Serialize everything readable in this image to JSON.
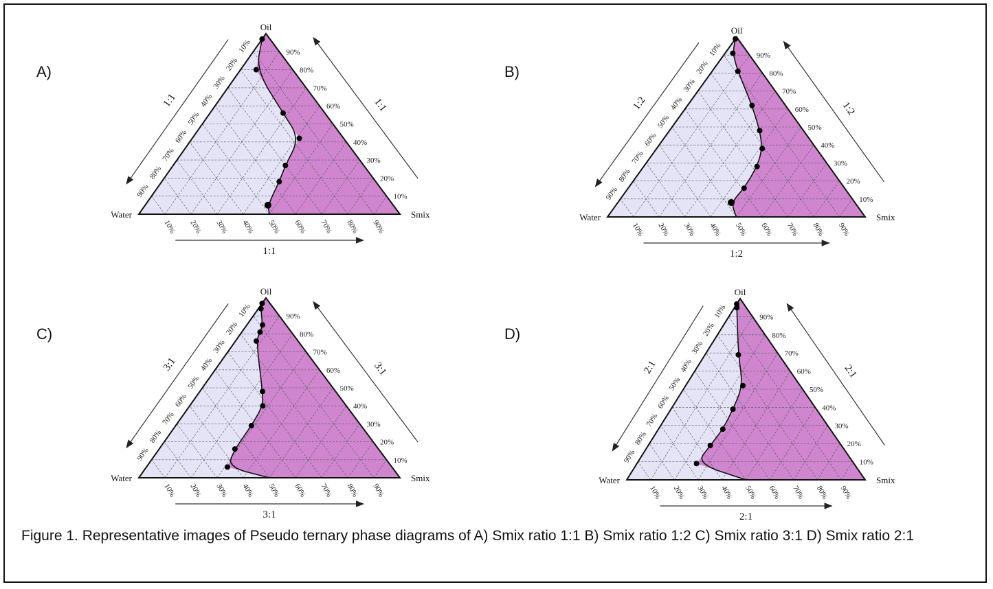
{
  "caption": "Figure 1. Representative images of Pseudo ternary phase diagrams of A) Smix ratio 1:1 B) Smix ratio 1:2 C) Smix ratio 3:1 D) Smix ratio 2:1",
  "vertices": {
    "top": "Oil",
    "left": "Water",
    "right": "Smix"
  },
  "ticks": [
    "10%",
    "20%",
    "30%",
    "40%",
    "50%",
    "60%",
    "70%",
    "80%",
    "90%"
  ],
  "colors": {
    "region": "#cf86cf",
    "light": "#e4e4f6",
    "frame": "#111111",
    "grid": "#555555"
  },
  "panels": [
    {
      "letter": "A)",
      "ratio": "1:1",
      "boundary": [
        [
          0.97,
          0.0
        ],
        [
          0.8,
          0.06
        ],
        [
          0.56,
          0.28
        ],
        [
          0.42,
          0.41
        ],
        [
          0.27,
          0.43
        ],
        [
          0.18,
          0.45
        ],
        [
          0.05,
          0.47
        ],
        [
          0.0,
          0.5
        ]
      ],
      "points": [
        [
          0.97,
          0.0
        ],
        [
          0.8,
          0.06
        ],
        [
          0.56,
          0.28
        ],
        [
          0.42,
          0.41
        ],
        [
          0.27,
          0.43
        ],
        [
          0.18,
          0.45
        ],
        [
          0.05,
          0.47
        ]
      ]
    },
    {
      "letter": "B)",
      "ratio": "1:2",
      "boundary": [
        [
          0.99,
          0.0
        ],
        [
          0.91,
          0.03
        ],
        [
          0.81,
          0.1
        ],
        [
          0.62,
          0.25
        ],
        [
          0.48,
          0.35
        ],
        [
          0.38,
          0.41
        ],
        [
          0.28,
          0.44
        ],
        [
          0.16,
          0.45
        ],
        [
          0.08,
          0.44
        ],
        [
          0.0,
          0.5
        ]
      ],
      "points": [
        [
          0.99,
          0.0
        ],
        [
          0.91,
          0.03
        ],
        [
          0.81,
          0.1
        ],
        [
          0.62,
          0.25
        ],
        [
          0.48,
          0.35
        ],
        [
          0.38,
          0.41
        ],
        [
          0.28,
          0.44
        ],
        [
          0.16,
          0.45
        ],
        [
          0.08,
          0.44
        ]
      ]
    },
    {
      "letter": "C)",
      "ratio": "3:1",
      "boundary": [
        [
          0.97,
          0.0
        ],
        [
          0.94,
          0.01
        ],
        [
          0.85,
          0.06
        ],
        [
          0.81,
          0.07
        ],
        [
          0.76,
          0.08
        ],
        [
          0.48,
          0.24
        ],
        [
          0.4,
          0.28
        ],
        [
          0.29,
          0.29
        ],
        [
          0.16,
          0.29
        ],
        [
          0.06,
          0.31
        ],
        [
          0.0,
          0.5
        ]
      ],
      "points": [
        [
          0.97,
          0.0
        ],
        [
          0.94,
          0.01
        ],
        [
          0.85,
          0.06
        ],
        [
          0.81,
          0.07
        ],
        [
          0.76,
          0.08
        ],
        [
          0.48,
          0.24
        ],
        [
          0.4,
          0.28
        ],
        [
          0.29,
          0.29
        ],
        [
          0.16,
          0.29
        ],
        [
          0.06,
          0.31
        ]
      ]
    },
    {
      "letter": "D)",
      "ratio": "2:1",
      "boundary": [
        [
          0.97,
          0.0
        ],
        [
          0.95,
          0.01
        ],
        [
          0.69,
          0.14
        ],
        [
          0.52,
          0.24
        ],
        [
          0.39,
          0.26
        ],
        [
          0.28,
          0.27
        ],
        [
          0.19,
          0.26
        ],
        [
          0.09,
          0.25
        ],
        [
          0.0,
          0.5
        ]
      ],
      "points": [
        [
          0.97,
          0.0
        ],
        [
          0.95,
          0.01
        ],
        [
          0.69,
          0.14
        ],
        [
          0.52,
          0.24
        ],
        [
          0.39,
          0.26
        ],
        [
          0.28,
          0.27
        ],
        [
          0.19,
          0.26
        ],
        [
          0.09,
          0.25
        ]
      ]
    }
  ]
}
